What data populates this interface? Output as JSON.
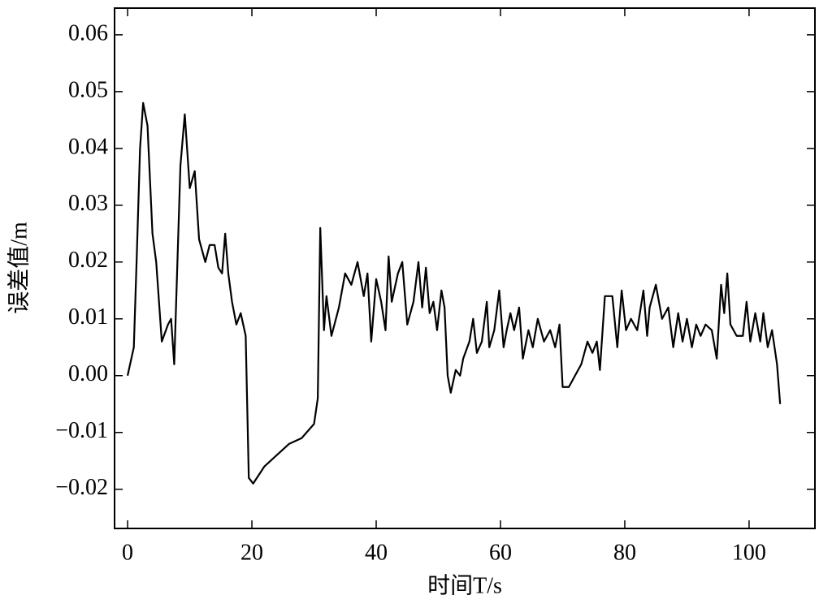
{
  "chart_data": {
    "type": "line",
    "x_label": "时间T/s",
    "y_label": "误差值/m",
    "xlim": [
      -2.1,
      110.6
    ],
    "ylim": [
      -0.0269,
      0.0647
    ],
    "xticks": [
      0,
      20,
      40,
      60,
      80,
      100
    ],
    "yticks": [
      {
        "value": -0.02,
        "label": "−0.02"
      },
      {
        "value": -0.01,
        "label": "−0.01"
      },
      {
        "value": 0,
        "label": "0.00"
      },
      0.01,
      0.02,
      0.03,
      0.04,
      0.05,
      0.06
    ],
    "series": [
      {
        "color": "#000000",
        "x": [
          0,
          1,
          1.5,
          2,
          2.5,
          3.2,
          4,
          4.6,
          5.5,
          6.5,
          7,
          7.5,
          8.5,
          9.2,
          10,
          10.8,
          11.5,
          12.5,
          13.2,
          14,
          14.6,
          15.2,
          15.7,
          16.2,
          16.8,
          17.5,
          18.2,
          19,
          19.5,
          20.2,
          22,
          24,
          26,
          28,
          30,
          30.6,
          31,
          31.6,
          32,
          32.8,
          34,
          35,
          36,
          37,
          38,
          38.6,
          39.2,
          40,
          40.8,
          41.5,
          42,
          42.5,
          43.5,
          44.2,
          45,
          46,
          46.8,
          47.4,
          48,
          48.6,
          49.2,
          49.8,
          50.5,
          51,
          51.5,
          52,
          52.8,
          53.5,
          54,
          55,
          55.6,
          56.2,
          57,
          57.8,
          58.2,
          59,
          59.8,
          60.5,
          61,
          61.6,
          62.2,
          63,
          63.6,
          64.5,
          65.2,
          66,
          67,
          68,
          68.8,
          69.5,
          70,
          71,
          72,
          73,
          74,
          74.8,
          75.5,
          76,
          76.8,
          78,
          78.8,
          79.5,
          80.2,
          81,
          82,
          83,
          83.6,
          84,
          85,
          86,
          87,
          87.8,
          88.6,
          89.3,
          90,
          90.8,
          91.5,
          92.2,
          93,
          94,
          94.8,
          95.5,
          96,
          96.5,
          97,
          98,
          99,
          99.6,
          100.2,
          101,
          101.8,
          102.3,
          103,
          103.7,
          104.5,
          105
        ],
        "values": [
          0,
          0.005,
          0.022,
          0.04,
          0.048,
          0.044,
          0.025,
          0.02,
          0.006,
          0.009,
          0.01,
          0.002,
          0.037,
          0.046,
          0.033,
          0.036,
          0.024,
          0.02,
          0.023,
          0.023,
          0.019,
          0.018,
          0.025,
          0.018,
          0.013,
          0.009,
          0.011,
          0.007,
          -0.018,
          -0.019,
          -0.016,
          -0.014,
          -0.012,
          -0.011,
          -0.0085,
          -0.004,
          0.026,
          0.008,
          0.014,
          0.007,
          0.012,
          0.018,
          0.016,
          0.02,
          0.014,
          0.018,
          0.006,
          0.017,
          0.013,
          0.008,
          0.021,
          0.013,
          0.018,
          0.02,
          0.009,
          0.013,
          0.02,
          0.012,
          0.019,
          0.011,
          0.013,
          0.008,
          0.015,
          0.012,
          0,
          -0.003,
          0.001,
          0,
          0.003,
          0.006,
          0.01,
          0.004,
          0.006,
          0.013,
          0.005,
          0.008,
          0.015,
          0.005,
          0.008,
          0.011,
          0.008,
          0.012,
          0.003,
          0.008,
          0.005,
          0.01,
          0.006,
          0.008,
          0.005,
          0.009,
          -0.002,
          -0.002,
          0,
          0.002,
          0.006,
          0.004,
          0.006,
          0.001,
          0.014,
          0.014,
          0.005,
          0.015,
          0.008,
          0.01,
          0.008,
          0.015,
          0.007,
          0.012,
          0.016,
          0.01,
          0.012,
          0.005,
          0.011,
          0.006,
          0.01,
          0.005,
          0.009,
          0.007,
          0.009,
          0.008,
          0.003,
          0.016,
          0.011,
          0.018,
          0.009,
          0.007,
          0.007,
          0.013,
          0.006,
          0.011,
          0.006,
          0.011,
          0.005,
          0.008,
          0.002,
          -0.005
        ]
      }
    ]
  }
}
